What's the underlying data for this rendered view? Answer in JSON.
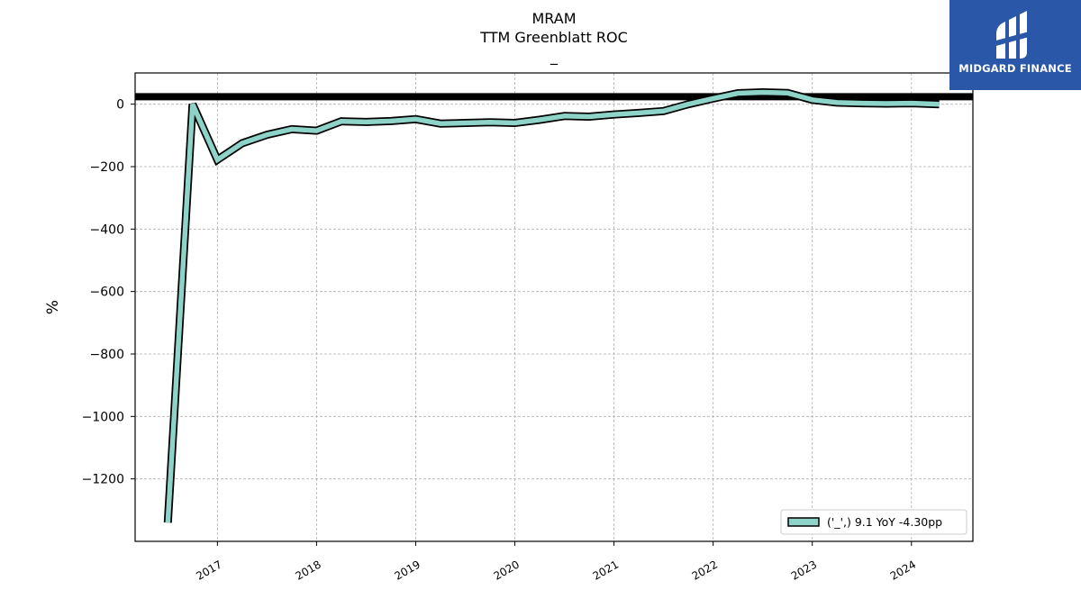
{
  "chart_data": {
    "type": "line",
    "title": "MRAM",
    "subtitle": "TTM Greenblatt ROC",
    "subtitle2": "_",
    "xlabel": "",
    "ylabel": "%",
    "x_ticks": [
      "2017",
      "2018",
      "2019",
      "2020",
      "2021",
      "2022",
      "2023",
      "2024"
    ],
    "y_ticks": [
      "0",
      "−200",
      "−400",
      "−600",
      "−800",
      "−1000",
      "−1200"
    ],
    "ylim": [
      -1400,
      100
    ],
    "xlim": [
      2016.17,
      2024.62
    ],
    "grid": true,
    "legend_position": "lower-right",
    "reference_line": 24,
    "series": [
      {
        "name": "('_',) 9.1 YoY -4.30pp",
        "color": "#8dd3c7",
        "x": [
          2016.5,
          2016.75,
          2017.0,
          2017.25,
          2017.5,
          2017.75,
          2018.0,
          2018.25,
          2018.5,
          2018.75,
          2019.0,
          2019.25,
          2019.5,
          2019.75,
          2020.0,
          2020.25,
          2020.5,
          2020.75,
          2021.0,
          2021.25,
          2021.5,
          2021.75,
          2022.0,
          2022.25,
          2022.5,
          2022.75,
          2023.0,
          2023.25,
          2023.5,
          2023.75,
          2024.0,
          2024.28
        ],
        "y": [
          -1340,
          0,
          -178,
          -125,
          -98,
          -80,
          -85,
          -55,
          -57,
          -54,
          -48,
          -62,
          -60,
          -58,
          -60,
          -50,
          -38,
          -40,
          -33,
          -28,
          -22,
          0,
          18,
          35,
          38,
          36,
          14,
          5,
          3,
          2,
          3,
          0
        ]
      }
    ]
  },
  "logo": {
    "text": "MIDGARD FINANCE",
    "icon": "midgard-logo-icon"
  }
}
